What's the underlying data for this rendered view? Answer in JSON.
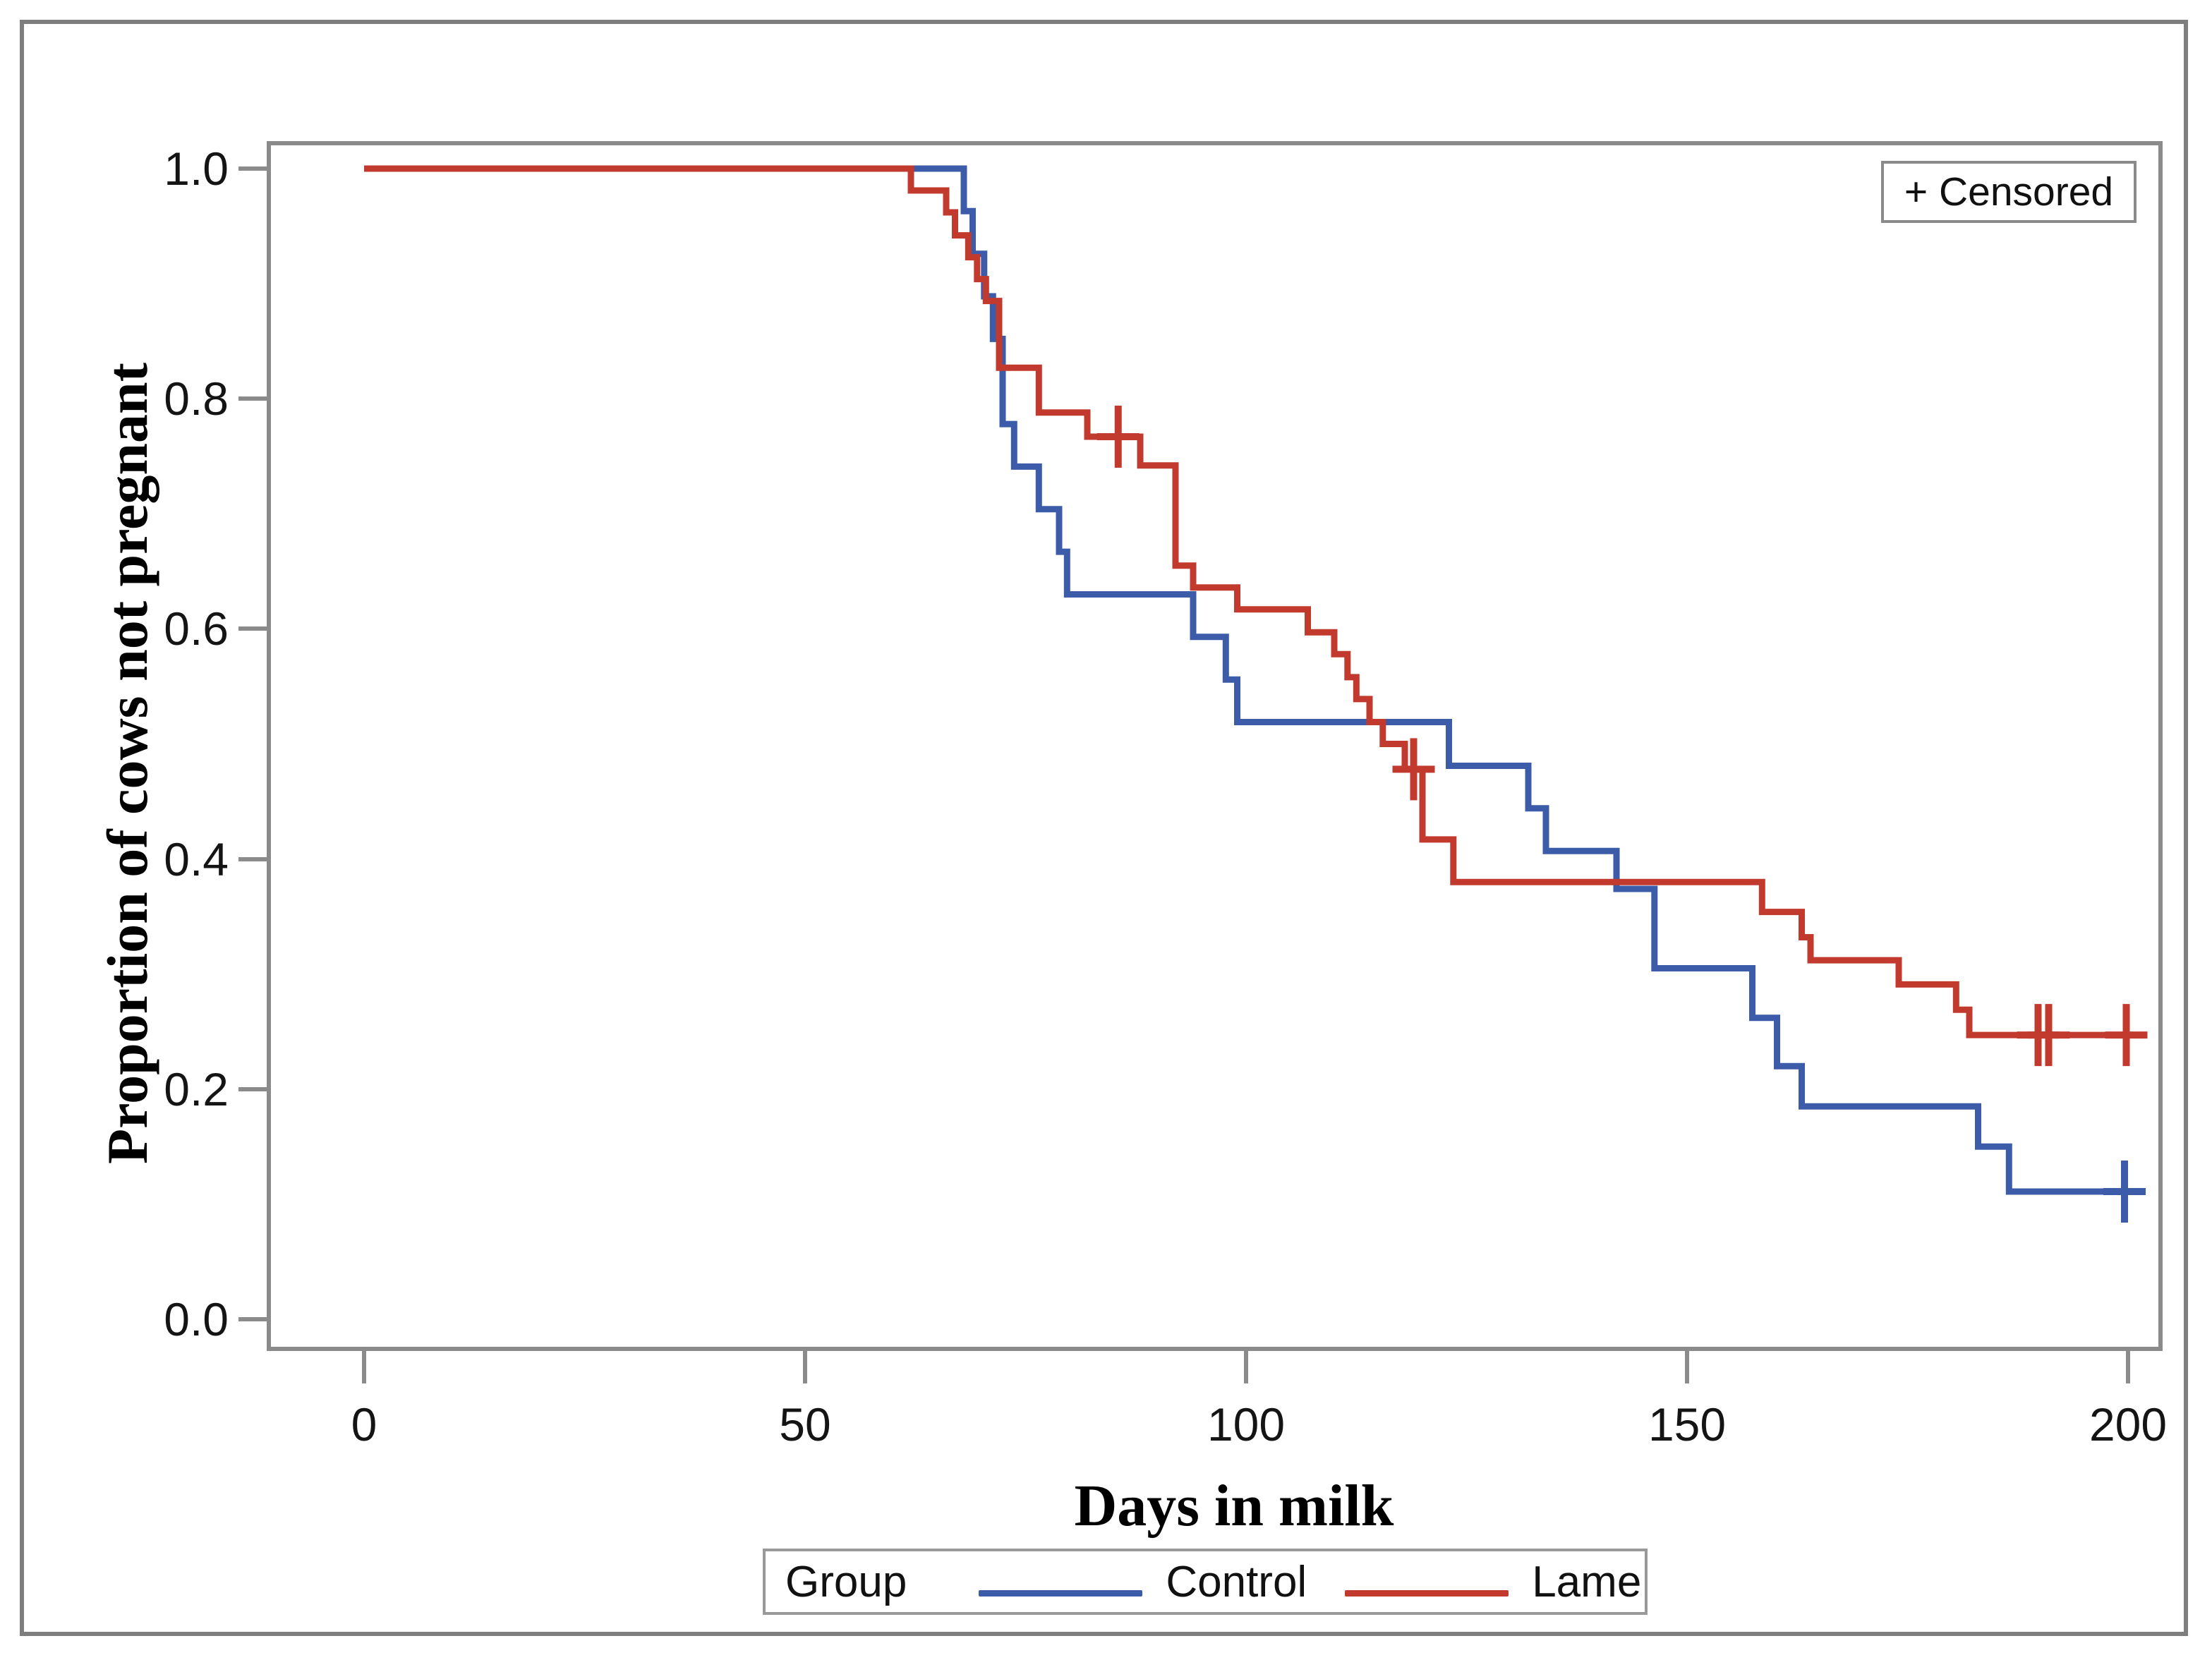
{
  "censored_label": "+ Censored",
  "legend": {
    "title": "Group",
    "items": [
      {
        "label": "Control",
        "color": "#3C5BA8"
      },
      {
        "label": "Lame",
        "color": "#C23A2E"
      }
    ]
  },
  "frame": {
    "border_color": "#7e7e7e",
    "axis_color": "#8b8b8b",
    "background": "#ffffff"
  },
  "chart_data": {
    "type": "line",
    "subtype": "kaplan-meier-step",
    "title": "",
    "xlabel": "Days in milk",
    "ylabel": "Proportion of cows not pregnant",
    "xlim": [
      -10.5,
      203.5
    ],
    "ylim": [
      -0.0205,
      1.0205
    ],
    "x_ticks": [
      0,
      50,
      100,
      150,
      200
    ],
    "y_ticks": [
      "1.0",
      "0.8",
      "0.6",
      "0.4",
      "0.2",
      "0.0"
    ],
    "y_tick_values": [
      1.0,
      0.8,
      0.6,
      0.4,
      0.2,
      0.0
    ],
    "grid": false,
    "legend_position": "bottom",
    "censored_marker": "+",
    "series": [
      {
        "name": "Control",
        "color": "#3C5BA8",
        "points": [
          [
            0,
            1.0
          ],
          [
            68,
            0.963
          ],
          [
            69,
            0.926
          ],
          [
            70.3,
            0.889
          ],
          [
            71.3,
            0.852
          ],
          [
            72.4,
            0.778
          ],
          [
            73.7,
            0.741
          ],
          [
            76.5,
            0.704
          ],
          [
            78.8,
            0.667
          ],
          [
            79.7,
            0.63
          ],
          [
            94,
            0.593
          ],
          [
            97.7,
            0.556
          ],
          [
            99,
            0.519
          ],
          [
            123,
            0.481
          ],
          [
            132,
            0.444
          ],
          [
            134,
            0.407
          ],
          [
            142,
            0.374
          ],
          [
            146.3,
            0.305
          ],
          [
            157.4,
            0.262
          ],
          [
            160.2,
            0.22
          ],
          [
            163,
            0.185
          ],
          [
            183,
            0.15
          ],
          [
            186.5,
            0.111
          ]
        ],
        "end_x": 201.5,
        "censored": [
          [
            199.6,
            0.111
          ]
        ]
      },
      {
        "name": "Lame",
        "color": "#C23A2E",
        "points": [
          [
            0,
            1.0
          ],
          [
            62,
            0.981
          ],
          [
            66,
            0.962
          ],
          [
            67,
            0.942
          ],
          [
            68.5,
            0.923
          ],
          [
            69.5,
            0.904
          ],
          [
            70.5,
            0.885
          ],
          [
            72,
            0.827
          ],
          [
            76.5,
            0.788
          ],
          [
            82,
            0.767
          ],
          [
            88,
            0.742
          ],
          [
            92,
            0.655
          ],
          [
            94,
            0.636
          ],
          [
            99,
            0.617
          ],
          [
            107,
            0.597
          ],
          [
            110,
            0.578
          ],
          [
            111.5,
            0.558
          ],
          [
            112.5,
            0.539
          ],
          [
            114,
            0.519
          ],
          [
            115.5,
            0.5
          ],
          [
            118,
            0.478
          ],
          [
            120,
            0.417
          ],
          [
            123.5,
            0.38
          ],
          [
            158.5,
            0.354
          ],
          [
            163,
            0.332
          ],
          [
            164,
            0.312
          ],
          [
            174,
            0.291
          ],
          [
            180.5,
            0.269
          ],
          [
            182,
            0.247
          ]
        ],
        "end_x": 201.2,
        "censored": [
          [
            85.5,
            0.767
          ],
          [
            119,
            0.478
          ],
          [
            189.8,
            0.247
          ],
          [
            191,
            0.247
          ],
          [
            199.8,
            0.247
          ]
        ]
      }
    ]
  }
}
